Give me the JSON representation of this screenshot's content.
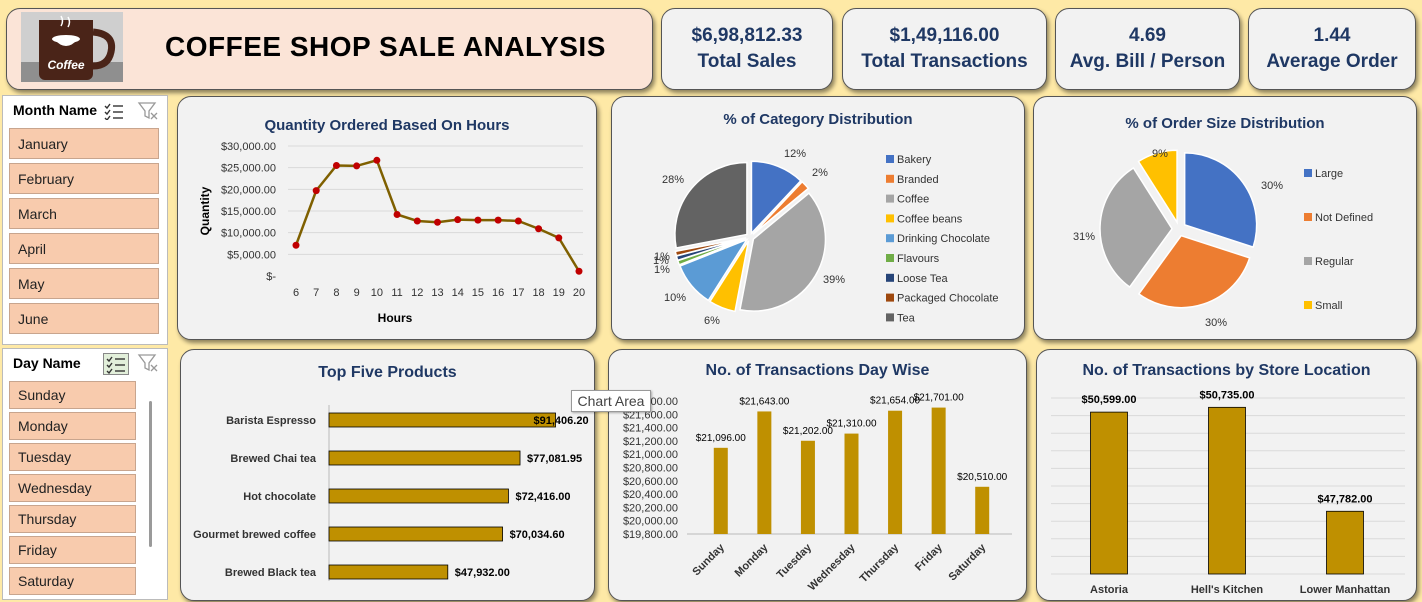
{
  "header": {
    "title": "COFFEE SHOP SALE ANALYSIS",
    "logo_text": "Coffee"
  },
  "kpis": [
    {
      "value": "$6,98,812.33",
      "label": "Total Sales"
    },
    {
      "value": "$1,49,116.00",
      "label": "Total Transactions"
    },
    {
      "value": "4.69",
      "label": "Avg. Bill / Person"
    },
    {
      "value": "1.44",
      "label": "Average Order"
    }
  ],
  "month_slicer": {
    "header": "Month Name",
    "items": [
      "January",
      "February",
      "March",
      "April",
      "May",
      "June"
    ]
  },
  "day_slicer": {
    "header": "Day Name",
    "items": [
      "Sunday",
      "Monday",
      "Tuesday",
      "Wednesday",
      "Thursday",
      "Friday",
      "Saturday"
    ]
  },
  "tooltip": "Chart Area",
  "colors": {
    "accent_gold": "#bf9000",
    "line_olive": "#7f6000",
    "marker_red": "#c00000",
    "title_navy": "#1f3864",
    "slicer_item": "#f8cbad",
    "page_bg": "#fee9a6"
  },
  "chart_data": [
    {
      "type": "line",
      "title": "Quantity Ordered Based On Hours",
      "xlabel": "Hours",
      "ylabel": "Quantity",
      "x": [
        "6",
        "7",
        "8",
        "9",
        "10",
        "11",
        "12",
        "13",
        "14",
        "15",
        "16",
        "17",
        "18",
        "19",
        "20"
      ],
      "values": [
        7100,
        19700,
        25500,
        25400,
        26700,
        14200,
        12700,
        12400,
        13000,
        12900,
        12900,
        12700,
        10900,
        8800,
        1100
      ],
      "ylim": [
        0,
        30000
      ],
      "yticks": [
        "$-",
        "$5,000.00",
        "$10,000.00",
        "$15,000.00",
        "$20,000.00",
        "$25,000.00",
        "$30,000.00"
      ],
      "grid": true
    },
    {
      "type": "pie",
      "title": "% of Category Distribution",
      "categories": [
        "Bakery",
        "Branded",
        "Coffee",
        "Coffee beans",
        "Drinking Chocolate",
        "Flavours",
        "Loose Tea",
        "Packaged Chocolate",
        "Tea"
      ],
      "values": [
        12,
        2,
        39,
        6,
        10,
        1,
        1,
        1,
        28
      ],
      "labels": [
        "12%",
        "2%",
        "39%",
        "6%",
        "10%",
        "1%",
        "1%",
        "1%",
        "28%"
      ],
      "colors": [
        "#4472c4",
        "#ed7d31",
        "#a5a5a5",
        "#ffc000",
        "#5b9bd5",
        "#70ad47",
        "#264478",
        "#9e480e",
        "#636363"
      ],
      "legend": "right"
    },
    {
      "type": "pie",
      "title": "% of Order Size Distribution",
      "categories": [
        "Large",
        "Not Defined",
        "Regular",
        "Small"
      ],
      "values": [
        30,
        30,
        31,
        9
      ],
      "labels": [
        "30%",
        "30%",
        "31%",
        "9%"
      ],
      "colors": [
        "#4472c4",
        "#ed7d31",
        "#a5a5a5",
        "#ffc000"
      ],
      "legend": "right"
    },
    {
      "type": "bar",
      "orientation": "horizontal",
      "title": "Top Five Products",
      "categories": [
        "Barista Espresso",
        "Brewed Chai tea",
        "Hot chocolate",
        "Gourmet brewed coffee",
        "Brewed Black tea"
      ],
      "values": [
        91406.2,
        77081.95,
        72416.0,
        70034.6,
        47932.0
      ],
      "labels": [
        "$91,406.20",
        "$77,081.95",
        "$72,416.00",
        "$70,034.60",
        "$47,932.00"
      ],
      "xlim": [
        0,
        92000
      ]
    },
    {
      "type": "bar",
      "title": "No. of Transactions Day Wise",
      "categories": [
        "Sunday",
        "Monday",
        "Tuesday",
        "Wednesday",
        "Thursday",
        "Friday",
        "Saturday"
      ],
      "values": [
        21096,
        21643,
        21202,
        21310,
        21654,
        21701,
        20510
      ],
      "labels": [
        "$21,096.00",
        "$21,643.00",
        "$21,202.00",
        "$21,310.00",
        "$21,654.00",
        "$21,701.00",
        "$20,510.00"
      ],
      "ylim": [
        19800,
        21800
      ],
      "yticks": [
        "$19,800.00",
        "$20,000.00",
        "$20,200.00",
        "$20,400.00",
        "$20,600.00",
        "$20,800.00",
        "$21,000.00",
        "$21,200.00",
        "$21,400.00",
        "$21,600.00",
        "$21,800.00"
      ]
    },
    {
      "type": "bar",
      "title": "No. of Transactions by Store Location",
      "categories": [
        "Astoria",
        "Hell's Kitchen",
        "Lower Manhattan"
      ],
      "values": [
        50599,
        50735,
        47782
      ],
      "labels": [
        "$50,599.00",
        "$50,735.00",
        "$47,782.00"
      ],
      "ylim": [
        46000,
        51000
      ],
      "grid": true
    }
  ]
}
